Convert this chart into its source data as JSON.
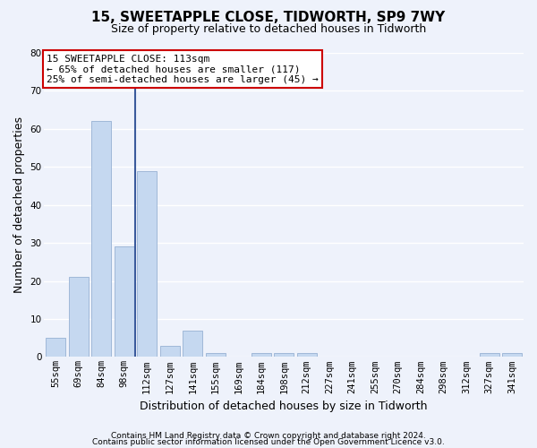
{
  "title1": "15, SWEETAPPLE CLOSE, TIDWORTH, SP9 7WY",
  "title2": "Size of property relative to detached houses in Tidworth",
  "xlabel": "Distribution of detached houses by size in Tidworth",
  "ylabel": "Number of detached properties",
  "footer1": "Contains HM Land Registry data © Crown copyright and database right 2024.",
  "footer2": "Contains public sector information licensed under the Open Government Licence v3.0.",
  "categories": [
    "55sqm",
    "69sqm",
    "84sqm",
    "98sqm",
    "112sqm",
    "127sqm",
    "141sqm",
    "155sqm",
    "169sqm",
    "184sqm",
    "198sqm",
    "212sqm",
    "227sqm",
    "241sqm",
    "255sqm",
    "270sqm",
    "284sqm",
    "298sqm",
    "312sqm",
    "327sqm",
    "341sqm"
  ],
  "values": [
    5,
    21,
    62,
    29,
    49,
    3,
    7,
    1,
    0,
    1,
    1,
    1,
    0,
    0,
    0,
    0,
    0,
    0,
    0,
    1,
    1
  ],
  "bar_color": "#c5d8f0",
  "bar_edgecolor": "#a0b8d8",
  "highlight_index": 4,
  "highlight_line_color": "#3a5a9c",
  "ylim": [
    0,
    80
  ],
  "yticks": [
    0,
    10,
    20,
    30,
    40,
    50,
    60,
    70,
    80
  ],
  "annotation_title": "15 SWEETAPPLE CLOSE: 113sqm",
  "annotation_line1": "← 65% of detached houses are smaller (117)",
  "annotation_line2": "25% of semi-detached houses are larger (45) →",
  "annotation_box_facecolor": "#ffffff",
  "annotation_border_color": "#cc0000",
  "bg_color": "#eef2fb",
  "grid_color": "#ffffff",
  "title1_fontsize": 11,
  "title2_fontsize": 9,
  "ylabel_fontsize": 9,
  "xlabel_fontsize": 9,
  "tick_fontsize": 7.5,
  "annotation_fontsize": 8,
  "footer_fontsize": 6.5
}
